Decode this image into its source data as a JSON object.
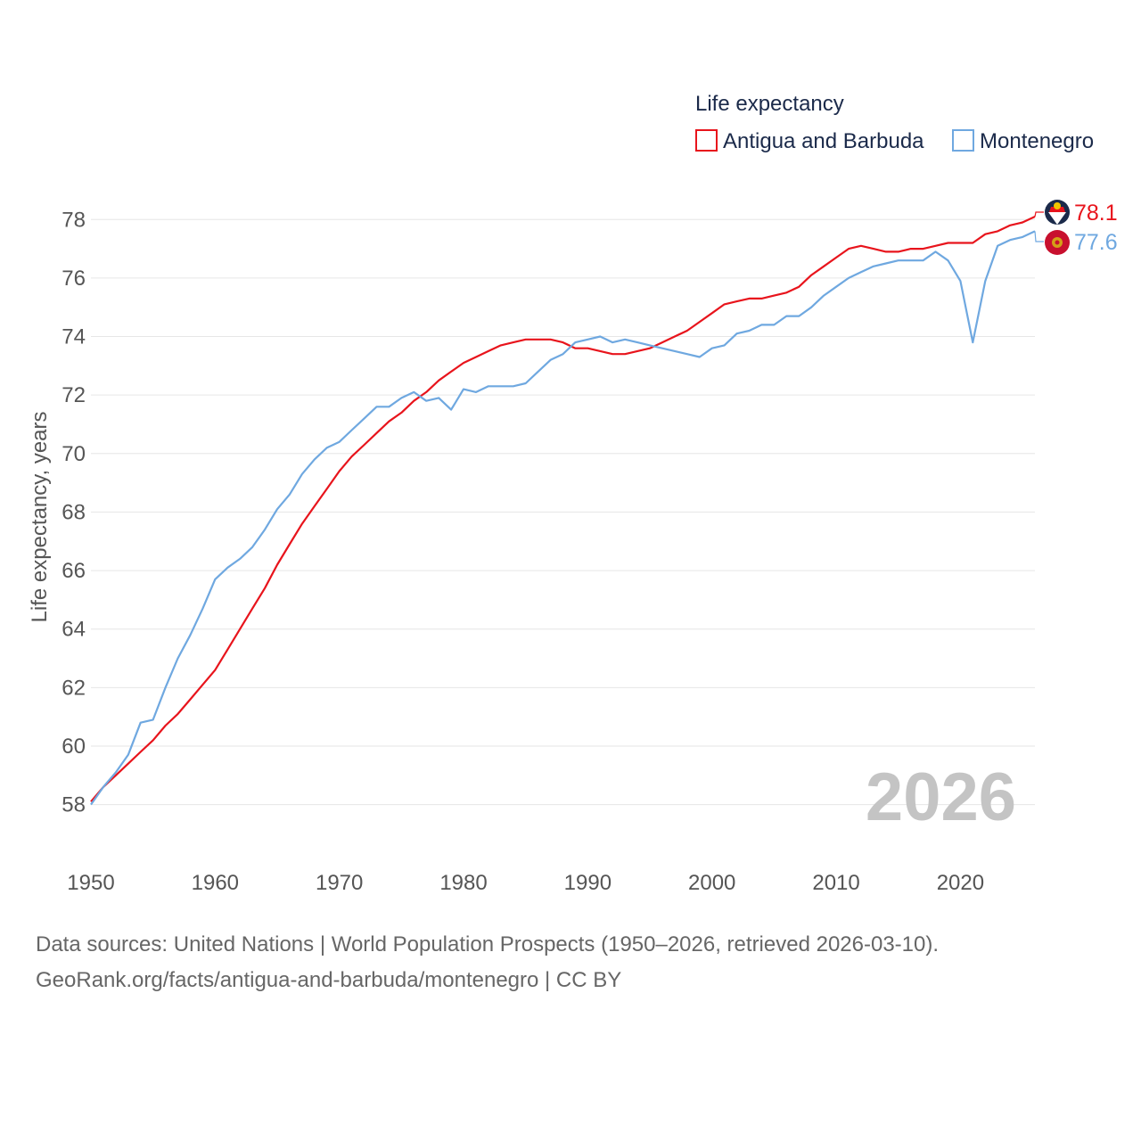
{
  "chart_data": {
    "type": "line",
    "legend_title": "Life expectancy",
    "ylabel": "Life expectancy, years",
    "xlabel": "",
    "xlim": [
      1950,
      2026
    ],
    "ylim": [
      56.8,
      78.8
    ],
    "yticks": [
      58,
      60,
      62,
      64,
      66,
      68,
      70,
      72,
      74,
      76,
      78
    ],
    "xticks": [
      1950,
      1960,
      1970,
      1980,
      1990,
      2000,
      2010,
      2020
    ],
    "current_year": "2026",
    "legend_position": "top-right",
    "x": [
      1950,
      1951,
      1952,
      1953,
      1954,
      1955,
      1956,
      1957,
      1958,
      1959,
      1960,
      1961,
      1962,
      1963,
      1964,
      1965,
      1966,
      1967,
      1968,
      1969,
      1970,
      1971,
      1972,
      1973,
      1974,
      1975,
      1976,
      1977,
      1978,
      1979,
      1980,
      1981,
      1982,
      1983,
      1984,
      1985,
      1986,
      1987,
      1988,
      1989,
      1990,
      1991,
      1992,
      1993,
      1994,
      1995,
      1996,
      1997,
      1998,
      1999,
      2000,
      2001,
      2002,
      2003,
      2004,
      2005,
      2006,
      2007,
      2008,
      2009,
      2010,
      2011,
      2012,
      2013,
      2014,
      2015,
      2016,
      2017,
      2018,
      2019,
      2020,
      2021,
      2022,
      2023,
      2024,
      2025,
      2026
    ],
    "series": [
      {
        "name": "Antigua and Barbuda",
        "color": "#e8141c",
        "end_label": "78.1",
        "values": [
          58.1,
          58.6,
          59.0,
          59.4,
          59.8,
          60.2,
          60.7,
          61.1,
          61.6,
          62.1,
          62.6,
          63.3,
          64.0,
          64.7,
          65.4,
          66.2,
          66.9,
          67.6,
          68.2,
          68.8,
          69.4,
          69.9,
          70.3,
          70.7,
          71.1,
          71.4,
          71.8,
          72.1,
          72.5,
          72.8,
          73.1,
          73.3,
          73.5,
          73.7,
          73.8,
          73.9,
          73.9,
          73.9,
          73.8,
          73.6,
          73.6,
          73.5,
          73.4,
          73.4,
          73.5,
          73.6,
          73.8,
          74.0,
          74.2,
          74.5,
          74.8,
          75.1,
          75.2,
          75.3,
          75.3,
          75.4,
          75.5,
          75.7,
          76.1,
          76.4,
          76.7,
          77.0,
          77.1,
          77.0,
          76.9,
          76.9,
          77.0,
          77.0,
          77.1,
          77.2,
          77.2,
          77.2,
          77.5,
          77.6,
          77.8,
          77.9,
          78.1
        ]
      },
      {
        "name": "Montenegro",
        "color": "#6fa8e0",
        "end_label": "77.6",
        "values": [
          58.0,
          58.6,
          59.1,
          59.7,
          60.8,
          60.9,
          62.0,
          63.0,
          63.8,
          64.7,
          65.7,
          66.1,
          66.4,
          66.8,
          67.4,
          68.1,
          68.6,
          69.3,
          69.8,
          70.2,
          70.4,
          70.8,
          71.2,
          71.6,
          71.6,
          71.9,
          72.1,
          71.8,
          71.9,
          71.5,
          72.2,
          72.1,
          72.3,
          72.3,
          72.3,
          72.4,
          72.8,
          73.2,
          73.4,
          73.8,
          73.9,
          74.0,
          73.8,
          73.9,
          73.8,
          73.7,
          73.6,
          73.5,
          73.4,
          73.3,
          73.6,
          73.7,
          74.1,
          74.2,
          74.4,
          74.4,
          74.7,
          74.7,
          75.0,
          75.4,
          75.7,
          76.0,
          76.2,
          76.4,
          76.5,
          76.6,
          76.6,
          76.6,
          76.9,
          76.6,
          75.9,
          73.8,
          75.9,
          77.1,
          77.3,
          77.4,
          77.6
        ]
      }
    ]
  },
  "sources": {
    "line1": "Data sources: United Nations | World Population Prospects (1950–2026, retrieved 2026-03-10).",
    "line2": "GeoRank.org/facts/antigua-and-barbuda/montenegro | CC BY"
  }
}
